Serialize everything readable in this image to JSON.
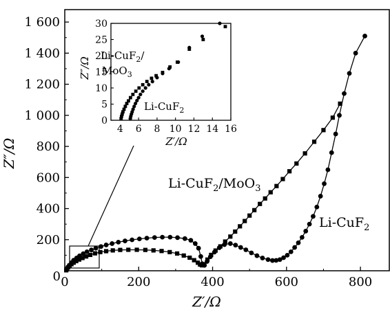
{
  "chart_data": {
    "type": "scatter",
    "main": {
      "xlabel": "Z′/Ω",
      "ylabel": "Z″/Ω",
      "xlim": [
        0,
        880
      ],
      "ylim": [
        0,
        1680
      ],
      "xticks": [
        0,
        200,
        400,
        600,
        800
      ],
      "xtick_labels": [
        "0",
        "200",
        "400",
        "600",
        "800"
      ],
      "yticks": [
        200,
        400,
        600,
        800,
        1000,
        1200,
        1400,
        1600
      ],
      "ytick_labels": [
        "200",
        "400",
        "600",
        "800",
        "1 000",
        "1 200",
        "1 400",
        "1 600"
      ],
      "series": [
        {
          "name": "Li-CuF2",
          "marker": "circle",
          "points": [
            [
              5,
              5
            ],
            [
              8,
              20
            ],
            [
              12,
              35
            ],
            [
              18,
              52
            ],
            [
              24,
              68
            ],
            [
              32,
              82
            ],
            [
              40,
              96
            ],
            [
              50,
              110
            ],
            [
              60,
              122
            ],
            [
              72,
              134
            ],
            [
              84,
              145
            ],
            [
              98,
              156
            ],
            [
              112,
              166
            ],
            [
              128,
              175
            ],
            [
              145,
              184
            ],
            [
              163,
              192
            ],
            [
              182,
              199
            ],
            [
              202,
              205
            ],
            [
              222,
              210
            ],
            [
              243,
              214
            ],
            [
              264,
              216
            ],
            [
              285,
              216
            ],
            [
              305,
              213
            ],
            [
              325,
              207
            ],
            [
              341,
              196
            ],
            [
              353,
              175
            ],
            [
              362,
              145
            ],
            [
              368,
              92
            ],
            [
              372,
              45
            ],
            [
              378,
              35
            ],
            [
              385,
              60
            ],
            [
              394,
              90
            ],
            [
              405,
              120
            ],
            [
              418,
              148
            ],
            [
              432,
              168
            ],
            [
              448,
              175
            ],
            [
              462,
              165
            ],
            [
              476,
              150
            ],
            [
              490,
              135
            ],
            [
              505,
              115
            ],
            [
              520,
              97
            ],
            [
              535,
              82
            ],
            [
              550,
              72
            ],
            [
              562,
              66
            ],
            [
              572,
              67
            ],
            [
              582,
              72
            ],
            [
              592,
              84
            ],
            [
              602,
              100
            ],
            [
              612,
              122
            ],
            [
              622,
              150
            ],
            [
              632,
              180
            ],
            [
              642,
              215
            ],
            [
              652,
              255
            ],
            [
              662,
              300
            ],
            [
              672,
              350
            ],
            [
              682,
              410
            ],
            [
              692,
              480
            ],
            [
              702,
              560
            ],
            [
              712,
              650
            ],
            [
              722,
              760
            ],
            [
              733,
              880
            ],
            [
              743,
              1000
            ],
            [
              756,
              1140
            ],
            [
              770,
              1270
            ],
            [
              787,
              1400
            ],
            [
              812,
              1510
            ]
          ]
        },
        {
          "name": "Li-CuF2/MoO3",
          "marker": "square",
          "points": [
            [
              4,
              3
            ],
            [
              6,
              12
            ],
            [
              9,
              22
            ],
            [
              13,
              32
            ],
            [
              18,
              42
            ],
            [
              24,
              52
            ],
            [
              31,
              62
            ],
            [
              39,
              72
            ],
            [
              48,
              82
            ],
            [
              58,
              92
            ],
            [
              69,
              102
            ],
            [
              82,
              112
            ],
            [
              96,
              120
            ],
            [
              112,
              126
            ],
            [
              130,
              131
            ],
            [
              150,
              134
            ],
            [
              172,
              135
            ],
            [
              195,
              135
            ],
            [
              218,
              134
            ],
            [
              240,
              131
            ],
            [
              262,
              127
            ],
            [
              284,
              120
            ],
            [
              304,
              111
            ],
            [
              322,
              98
            ],
            [
              338,
              84
            ],
            [
              350,
              68
            ],
            [
              360,
              52
            ],
            [
              366,
              40
            ],
            [
              371,
              35
            ],
            [
              377,
              42
            ],
            [
              386,
              72
            ],
            [
              396,
              102
            ],
            [
              408,
              130
            ],
            [
              421,
              157
            ],
            [
              434,
              188
            ],
            [
              448,
              220
            ],
            [
              461,
              252
            ],
            [
              474,
              286
            ],
            [
              487,
              320
            ],
            [
              500,
              355
            ],
            [
              513,
              390
            ],
            [
              528,
              430
            ],
            [
              542,
              465
            ],
            [
              557,
              505
            ],
            [
              573,
              545
            ],
            [
              590,
              590
            ],
            [
              608,
              640
            ],
            [
              627,
              690
            ],
            [
              650,
              755
            ],
            [
              675,
              830
            ],
            [
              700,
              905
            ],
            [
              725,
              985
            ],
            [
              745,
              1075
            ]
          ]
        }
      ]
    },
    "inset": {
      "xlabel": "Z′/Ω",
      "ylabel": "Z″/Ω",
      "xlim": [
        3,
        16
      ],
      "ylim": [
        0,
        30
      ],
      "xticks": [
        4,
        6,
        8,
        10,
        12,
        14,
        16
      ],
      "xtick_labels": [
        "4",
        "6",
        "8",
        "10",
        "12",
        "14",
        "16"
      ],
      "yticks": [
        0,
        5,
        10,
        15,
        20,
        25,
        30
      ],
      "ytick_labels": [
        "0",
        "5",
        "10",
        "15",
        "20",
        "25",
        "30"
      ],
      "series": [
        {
          "name": "Li-CuF2",
          "marker": "circle",
          "points": [
            [
              5.1,
              0.5
            ],
            [
              5.15,
              1.2
            ],
            [
              5.22,
              1.9
            ],
            [
              5.3,
              2.6
            ],
            [
              5.4,
              3.4
            ],
            [
              5.52,
              4.3
            ],
            [
              5.66,
              5.2
            ],
            [
              5.82,
              6.1
            ],
            [
              6.0,
              7.0
            ],
            [
              6.2,
              8.0
            ],
            [
              6.45,
              9.0
            ],
            [
              6.75,
              10.0
            ],
            [
              7.1,
              11.0
            ],
            [
              7.5,
              12.0
            ],
            [
              8.0,
              13.2
            ],
            [
              8.6,
              14.5
            ],
            [
              9.3,
              16.0
            ],
            [
              10.3,
              18.0
            ],
            [
              11.5,
              22.5
            ],
            [
              12.9,
              26.0
            ],
            [
              14.8,
              30.0
            ]
          ]
        },
        {
          "name": "Li-CuF2/MoO3",
          "marker": "square",
          "points": [
            [
              4.1,
              0.5
            ],
            [
              4.15,
              1.2
            ],
            [
              4.22,
              1.9
            ],
            [
              4.3,
              2.6
            ],
            [
              4.42,
              3.4
            ],
            [
              4.56,
              4.3
            ],
            [
              4.72,
              5.2
            ],
            [
              4.9,
              6.0
            ],
            [
              5.12,
              7.0
            ],
            [
              5.38,
              8.0
            ],
            [
              5.7,
              9.0
            ],
            [
              6.05,
              10.0
            ],
            [
              6.45,
              11.0
            ],
            [
              6.9,
              12.0
            ],
            [
              7.4,
              13.0
            ],
            [
              7.9,
              13.8
            ],
            [
              8.6,
              14.8
            ],
            [
              9.4,
              16.5
            ],
            [
              10.2,
              18.0
            ],
            [
              11.5,
              22.0
            ],
            [
              13.0,
              25.0
            ],
            [
              15.4,
              29.0
            ]
          ]
        }
      ]
    },
    "annotations": [
      {
        "base": "Li-CuF",
        "sub1": "2",
        "mid": "/MoO",
        "sub2": "3"
      },
      {
        "base": "Li-CuF",
        "sub1": "2",
        "mid": "",
        "sub2": ""
      }
    ],
    "inset_annotations": [
      {
        "line1_base": "Li-CuF",
        "line1_sub": "2",
        "line1_tail": "/",
        "line2_base": "MoO",
        "line2_sub": "3"
      },
      {
        "base": "Li-CuF",
        "sub1": "2"
      }
    ]
  }
}
